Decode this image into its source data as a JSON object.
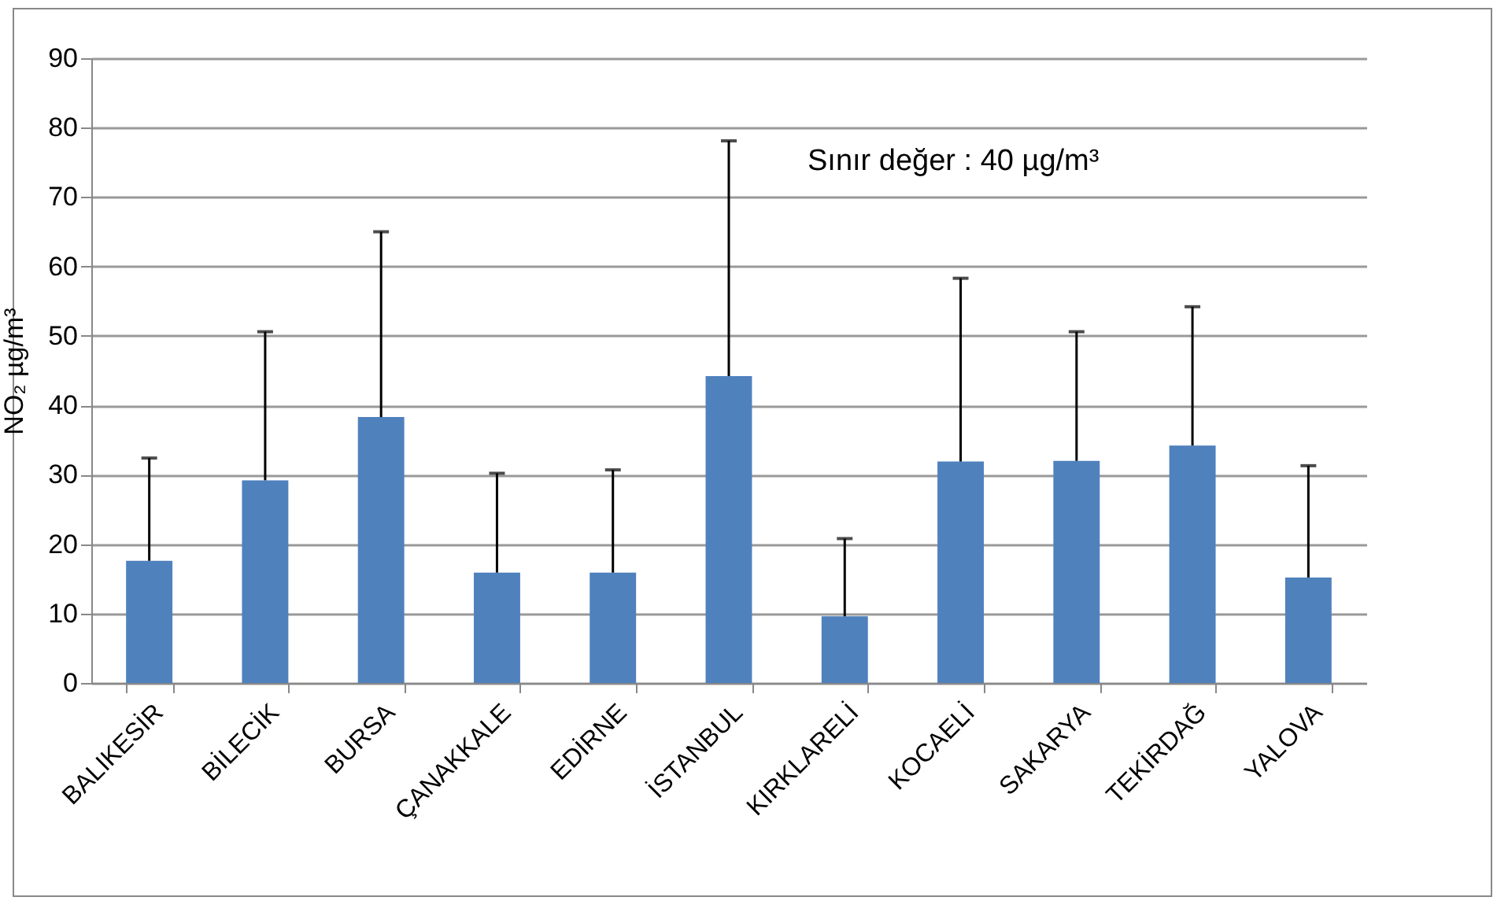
{
  "chart_data": {
    "type": "bar",
    "ylabel": "NO₂ µg/m³",
    "annotations": [
      "Sınır değer : 40  µg/m³"
    ],
    "categories": [
      "BALIKESİR",
      "BİLECİK",
      "BURSA",
      "ÇANAKKALE",
      "EDİRNE",
      "İSTANBUL",
      "KIRKLARELİ",
      "KOCAELİ",
      "SAKARYA",
      "TEKİRDAĞ",
      "YALOVA"
    ],
    "values": [
      17.6,
      29.2,
      38.3,
      15.9,
      15.9,
      44.2,
      9.6,
      31.9,
      32.0,
      34.2,
      15.2
    ],
    "errors": [
      [
        17.6,
        32.4
      ],
      [
        29.2,
        50.6
      ],
      [
        38.3,
        65.0
      ],
      [
        15.9,
        30.2
      ],
      [
        15.9,
        30.7
      ],
      [
        44.2,
        78.1
      ],
      [
        9.6,
        20.8
      ],
      [
        31.9,
        58.3
      ],
      [
        32.0,
        50.6
      ],
      [
        34.2,
        54.2
      ],
      [
        15.2,
        31.3
      ]
    ],
    "color": "#4f81bd",
    "ylim": [
      0,
      90
    ],
    "yticks": [
      0,
      10,
      20,
      30,
      40,
      50,
      60,
      70,
      80,
      90
    ],
    "grid": "y"
  }
}
